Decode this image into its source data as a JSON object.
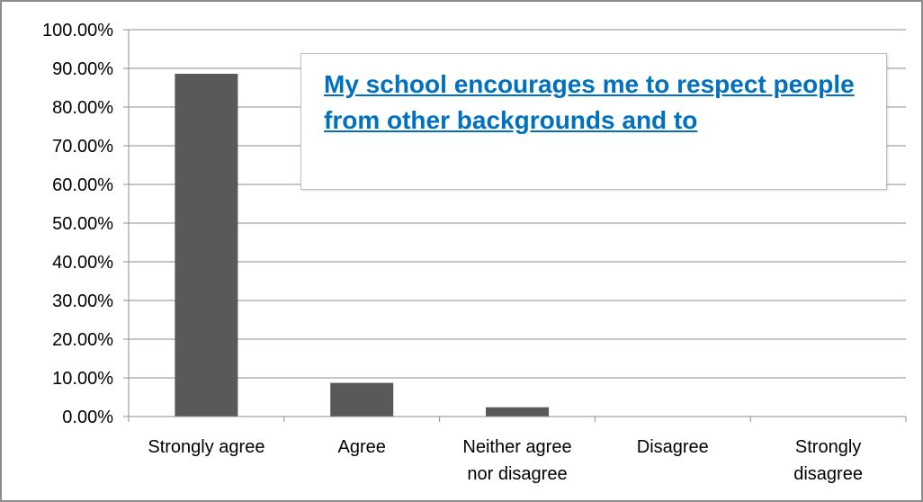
{
  "chart_data": {
    "type": "bar",
    "title": "My school encourages me to respect people from other backgrounds and to",
    "categories": [
      "Strongly agree",
      "Agree",
      "Neither agree nor disagree",
      "Disagree",
      "Strongly disagree"
    ],
    "category_lines": [
      [
        "Strongly agree"
      ],
      [
        "Agree"
      ],
      [
        "Neither agree",
        "nor disagree"
      ],
      [
        "Disagree"
      ],
      [
        "Strongly",
        "disagree"
      ]
    ],
    "series": [
      {
        "values": [
          88.6,
          8.7,
          2.4,
          0,
          0
        ]
      }
    ],
    "ylim": [
      0,
      100
    ],
    "yticks": [
      0,
      10,
      20,
      30,
      40,
      50,
      60,
      70,
      80,
      90,
      100
    ],
    "ytick_labels": [
      "0.00%",
      "10.00%",
      "20.00%",
      "30.00%",
      "40.00%",
      "50.00%",
      "60.00%",
      "70.00%",
      "80.00%",
      "90.00%",
      "100.00%"
    ],
    "xlabel": "",
    "ylabel": "",
    "grid": true,
    "legend": "none",
    "colors": {
      "bar": "#595959",
      "grid": "#8c8c8c",
      "axis": "#8c8c8c",
      "text": "#000000",
      "title": "#0070c0",
      "frame": "#8c8c8c"
    }
  }
}
